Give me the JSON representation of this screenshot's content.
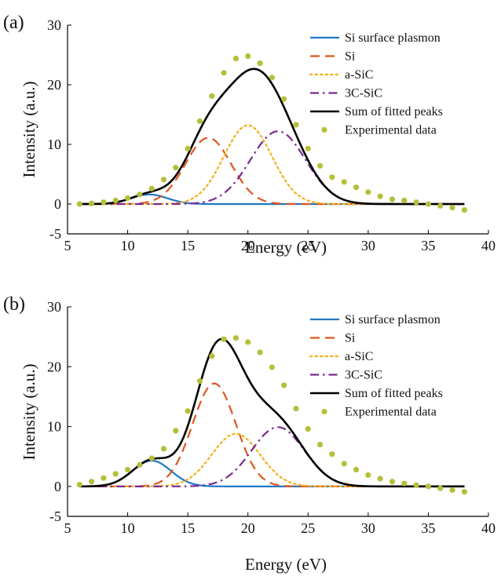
{
  "chart_data": [
    {
      "type": "line",
      "panel_label": "(a)",
      "xlabel": "Energy (eV)",
      "ylabel": "Intensity (a.u.)",
      "xlim": [
        5,
        40
      ],
      "ylim": [
        -5,
        30
      ],
      "xticks": [
        5,
        10,
        15,
        20,
        25,
        30,
        35,
        40
      ],
      "yticks": [
        -5,
        0,
        10,
        20,
        30
      ],
      "grid": false,
      "legend": "top-right",
      "series": [
        {
          "name": "Si surface plasmon",
          "style": "solid",
          "color": "#1f77c4",
          "peak": {
            "center": 11.8,
            "amplitude": 1.6,
            "sigma": 1.5
          }
        },
        {
          "name": "Si",
          "style": "dashed",
          "color": "#e0561c",
          "peak": {
            "center": 16.7,
            "amplitude": 11.1,
            "sigma": 1.9
          }
        },
        {
          "name": "a-SiC",
          "style": "dotted",
          "color": "#f2b01e",
          "peak": {
            "center": 20.0,
            "amplitude": 13.2,
            "sigma": 2.0
          }
        },
        {
          "name": "3C-SiC",
          "style": "dashdot",
          "color": "#7a2a8f",
          "peak": {
            "center": 22.5,
            "amplitude": 12.2,
            "sigma": 2.3
          }
        },
        {
          "name": "Sum of fitted peaks",
          "style": "solid",
          "color": "#000000",
          "sum": true
        }
      ],
      "experimental": {
        "name": "Experimental data",
        "color": "#b5bf3a",
        "x": [
          6,
          7,
          8,
          9,
          10,
          11,
          12,
          13,
          14,
          15,
          16,
          17,
          18,
          19,
          20,
          21,
          22,
          23,
          24,
          25,
          26,
          27,
          28,
          29,
          30,
          31,
          32,
          33,
          34,
          35,
          36,
          37,
          38
        ],
        "y": [
          0.0,
          0.1,
          0.3,
          0.6,
          1.0,
          1.6,
          2.6,
          4.1,
          6.1,
          9.3,
          13.9,
          18.1,
          22.0,
          24.4,
          24.8,
          23.6,
          21.2,
          17.6,
          13.3,
          9.3,
          6.4,
          4.5,
          3.7,
          2.8,
          2.0,
          1.3,
          0.8,
          0.6,
          0.3,
          0.0,
          -0.3,
          -0.6,
          -1.0
        ]
      }
    },
    {
      "type": "line",
      "panel_label": "(b)",
      "xlabel": "Energy (eV)",
      "ylabel": "Intensity (a.u.)",
      "xlim": [
        5,
        40
      ],
      "ylim": [
        -5,
        30
      ],
      "xticks": [
        5,
        10,
        15,
        20,
        25,
        30,
        35,
        40
      ],
      "yticks": [
        -5,
        0,
        10,
        20,
        30
      ],
      "grid": false,
      "legend": "top-right",
      "series": [
        {
          "name": "Si surface plasmon",
          "style": "solid",
          "color": "#1f77c4",
          "peak": {
            "center": 12.0,
            "amplitude": 4.3,
            "sigma": 1.6
          }
        },
        {
          "name": "Si",
          "style": "dashed",
          "color": "#e0561c",
          "peak": {
            "center": 17.2,
            "amplitude": 17.2,
            "sigma": 1.8
          }
        },
        {
          "name": "a-SiC",
          "style": "dotted",
          "color": "#f2b01e",
          "peak": {
            "center": 19.0,
            "amplitude": 8.8,
            "sigma": 2.0
          }
        },
        {
          "name": "3C-SiC",
          "style": "dashdot",
          "color": "#7a2a8f",
          "peak": {
            "center": 22.5,
            "amplitude": 9.9,
            "sigma": 2.2
          }
        },
        {
          "name": "Sum of fitted peaks",
          "style": "solid",
          "color": "#000000",
          "sum": true
        }
      ],
      "experimental": {
        "name": "Experimental data",
        "color": "#b5bf3a",
        "x": [
          6,
          7,
          8,
          9,
          10,
          11,
          12,
          13,
          14,
          15,
          16,
          17,
          18,
          19,
          20,
          21,
          22,
          23,
          24,
          25,
          26,
          27,
          28,
          29,
          30,
          31,
          32,
          33,
          34,
          35,
          36,
          37,
          38
        ],
        "y": [
          0.3,
          0.8,
          1.4,
          2.1,
          2.8,
          3.6,
          4.7,
          6.3,
          9.3,
          12.6,
          17.6,
          21.8,
          24.6,
          24.8,
          24.1,
          22.4,
          19.9,
          16.9,
          13.0,
          9.6,
          7.0,
          5.4,
          3.8,
          2.8,
          1.9,
          1.3,
          0.8,
          0.5,
          0.2,
          0.0,
          -0.3,
          -0.6,
          -0.9
        ]
      }
    }
  ]
}
